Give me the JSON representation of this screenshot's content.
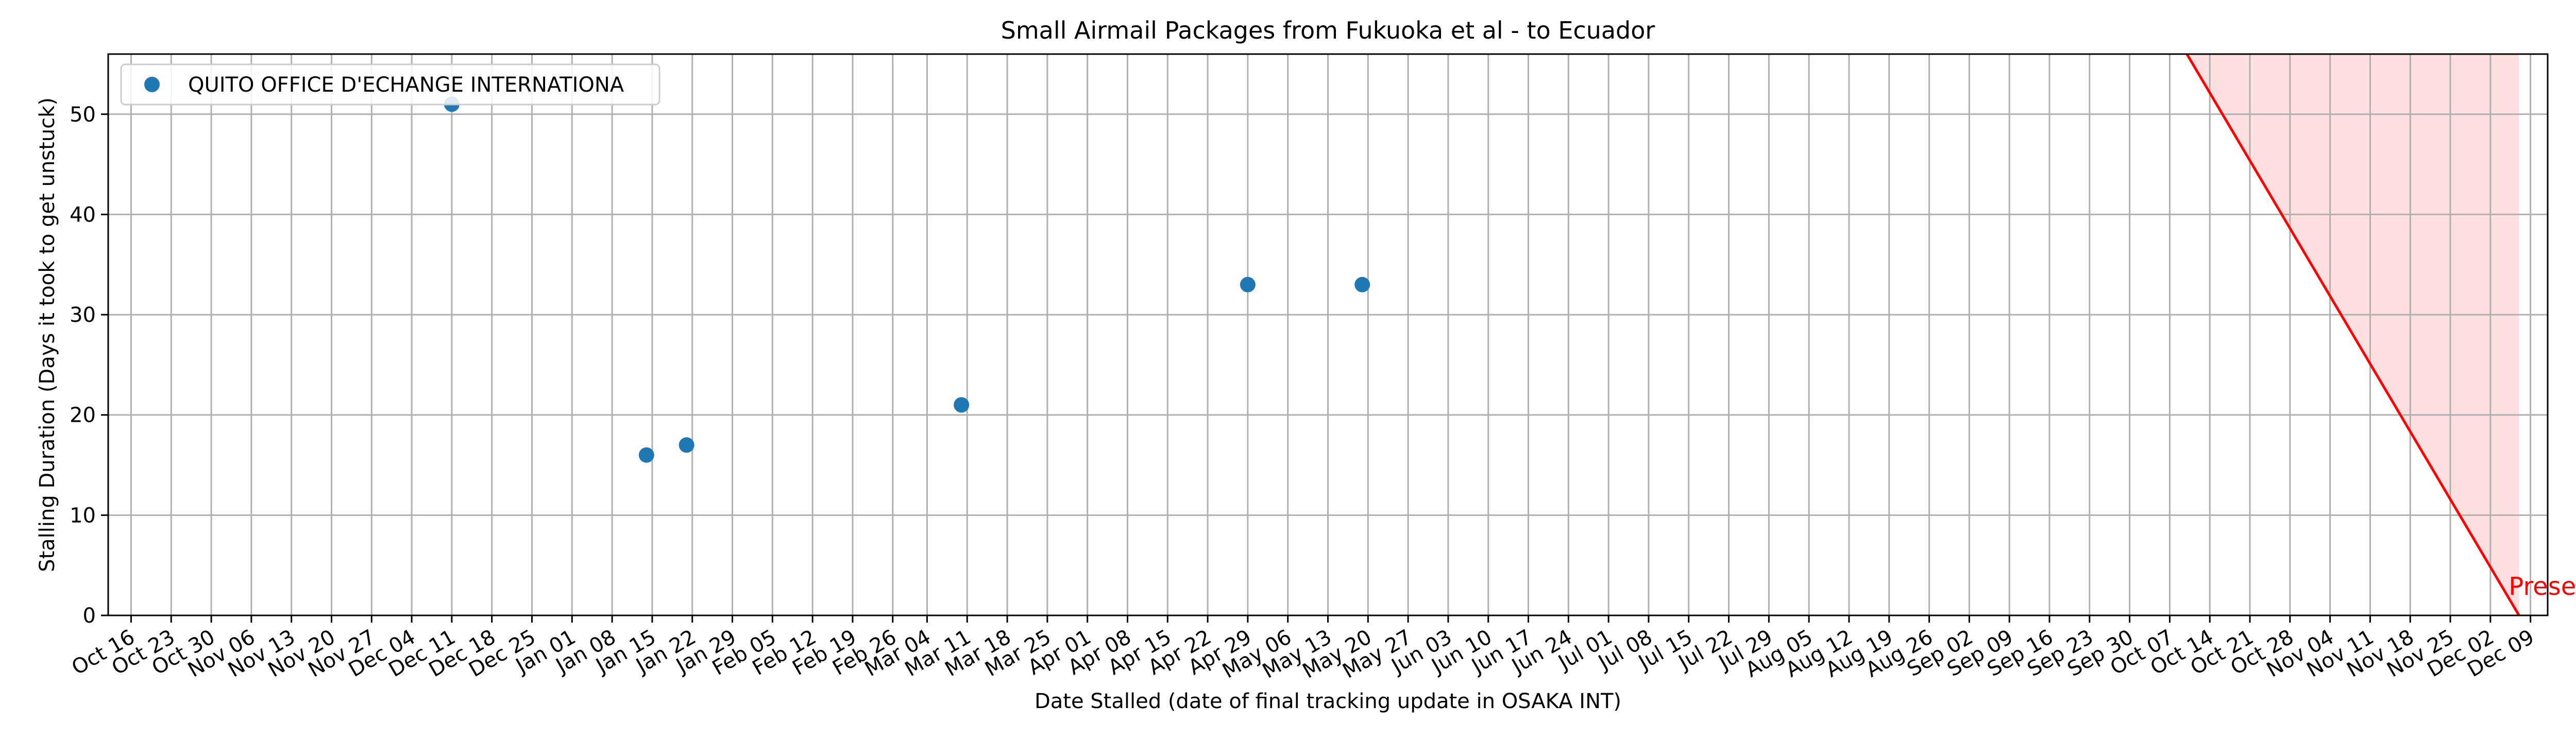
{
  "chart_data": {
    "type": "scatter",
    "title": "Small Airmail Packages from Fukuoka et al - to Ecuador",
    "xlabel": "Date Stalled (date of final tracking update in OSAKA INT)",
    "ylabel": "Stalling Duration (Days it took to get unstuck)",
    "xlim": [
      "2022-10-12",
      "2023-12-12"
    ],
    "ylim": [
      0,
      56
    ],
    "x_tick_dates": [
      "2022-10-16",
      "2022-10-23",
      "2022-10-30",
      "2022-11-06",
      "2022-11-13",
      "2022-11-20",
      "2022-11-27",
      "2022-12-04",
      "2022-12-11",
      "2022-12-18",
      "2022-12-25",
      "2023-01-01",
      "2023-01-08",
      "2023-01-15",
      "2023-01-22",
      "2023-01-29",
      "2023-02-05",
      "2023-02-12",
      "2023-02-19",
      "2023-02-26",
      "2023-03-04",
      "2023-03-11",
      "2023-03-18",
      "2023-03-25",
      "2023-04-01",
      "2023-04-08",
      "2023-04-15",
      "2023-04-22",
      "2023-04-29",
      "2023-05-06",
      "2023-05-13",
      "2023-05-20",
      "2023-05-27",
      "2023-06-03",
      "2023-06-10",
      "2023-06-17",
      "2023-06-24",
      "2023-07-01",
      "2023-07-08",
      "2023-07-15",
      "2023-07-22",
      "2023-07-29",
      "2023-08-05",
      "2023-08-12",
      "2023-08-19",
      "2023-08-26",
      "2023-09-02",
      "2023-09-09",
      "2023-09-16",
      "2023-09-23",
      "2023-09-30",
      "2023-10-07",
      "2023-10-14",
      "2023-10-21",
      "2023-10-28",
      "2023-11-04",
      "2023-11-11",
      "2023-11-18",
      "2023-11-25",
      "2023-12-02",
      "2023-12-09"
    ],
    "x_tick_labels": [
      "Oct 16",
      "Oct 23",
      "Oct 30",
      "Nov 06",
      "Nov 13",
      "Nov 20",
      "Nov 27",
      "Dec 04",
      "Dec 11",
      "Dec 18",
      "Dec 25",
      "Jan 01",
      "Jan 08",
      "Jan 15",
      "Jan 22",
      "Jan 29",
      "Feb 05",
      "Feb 12",
      "Feb 19",
      "Feb 26",
      "Mar 04",
      "Mar 11",
      "Mar 18",
      "Mar 25",
      "Apr 01",
      "Apr 08",
      "Apr 15",
      "Apr 22",
      "Apr 29",
      "May 06",
      "May 13",
      "May 20",
      "May 27",
      "Jun 03",
      "Jun 10",
      "Jun 17",
      "Jun 24",
      "Jul 01",
      "Jul 08",
      "Jul 15",
      "Jul 22",
      "Jul 29",
      "Aug 05",
      "Aug 12",
      "Aug 19",
      "Aug 26",
      "Sep 02",
      "Sep 09",
      "Sep 16",
      "Sep 23",
      "Sep 30",
      "Oct 07",
      "Oct 14",
      "Oct 21",
      "Oct 28",
      "Nov 04",
      "Nov 11",
      "Nov 18",
      "Nov 25",
      "Dec 02",
      "Dec 09"
    ],
    "y_ticks": [
      0,
      10,
      20,
      30,
      40,
      50
    ],
    "y_tick_labels": [
      "0",
      "10",
      "20",
      "30",
      "40",
      "50"
    ],
    "grid": true,
    "legend_position": "top-left",
    "series": [
      {
        "name": "QUITO OFFICE D'ECHANGE INTERNATIONA",
        "color": "#1f77b4",
        "points": [
          {
            "x": "2022-12-11",
            "y": 51
          },
          {
            "x": "2023-01-14",
            "y": 16
          },
          {
            "x": "2023-01-21",
            "y": 17
          },
          {
            "x": "2023-03-10",
            "y": 21
          },
          {
            "x": "2023-04-29",
            "y": 33
          },
          {
            "x": "2023-05-19",
            "y": 33
          }
        ]
      }
    ],
    "present_region": {
      "label": "Present",
      "color": "#ff0000",
      "fill_color": "#ffe0e0",
      "line_from": {
        "x": "2023-10-10",
        "y": 56
      },
      "line_to": {
        "x": "2023-12-07",
        "y": 0
      }
    }
  }
}
